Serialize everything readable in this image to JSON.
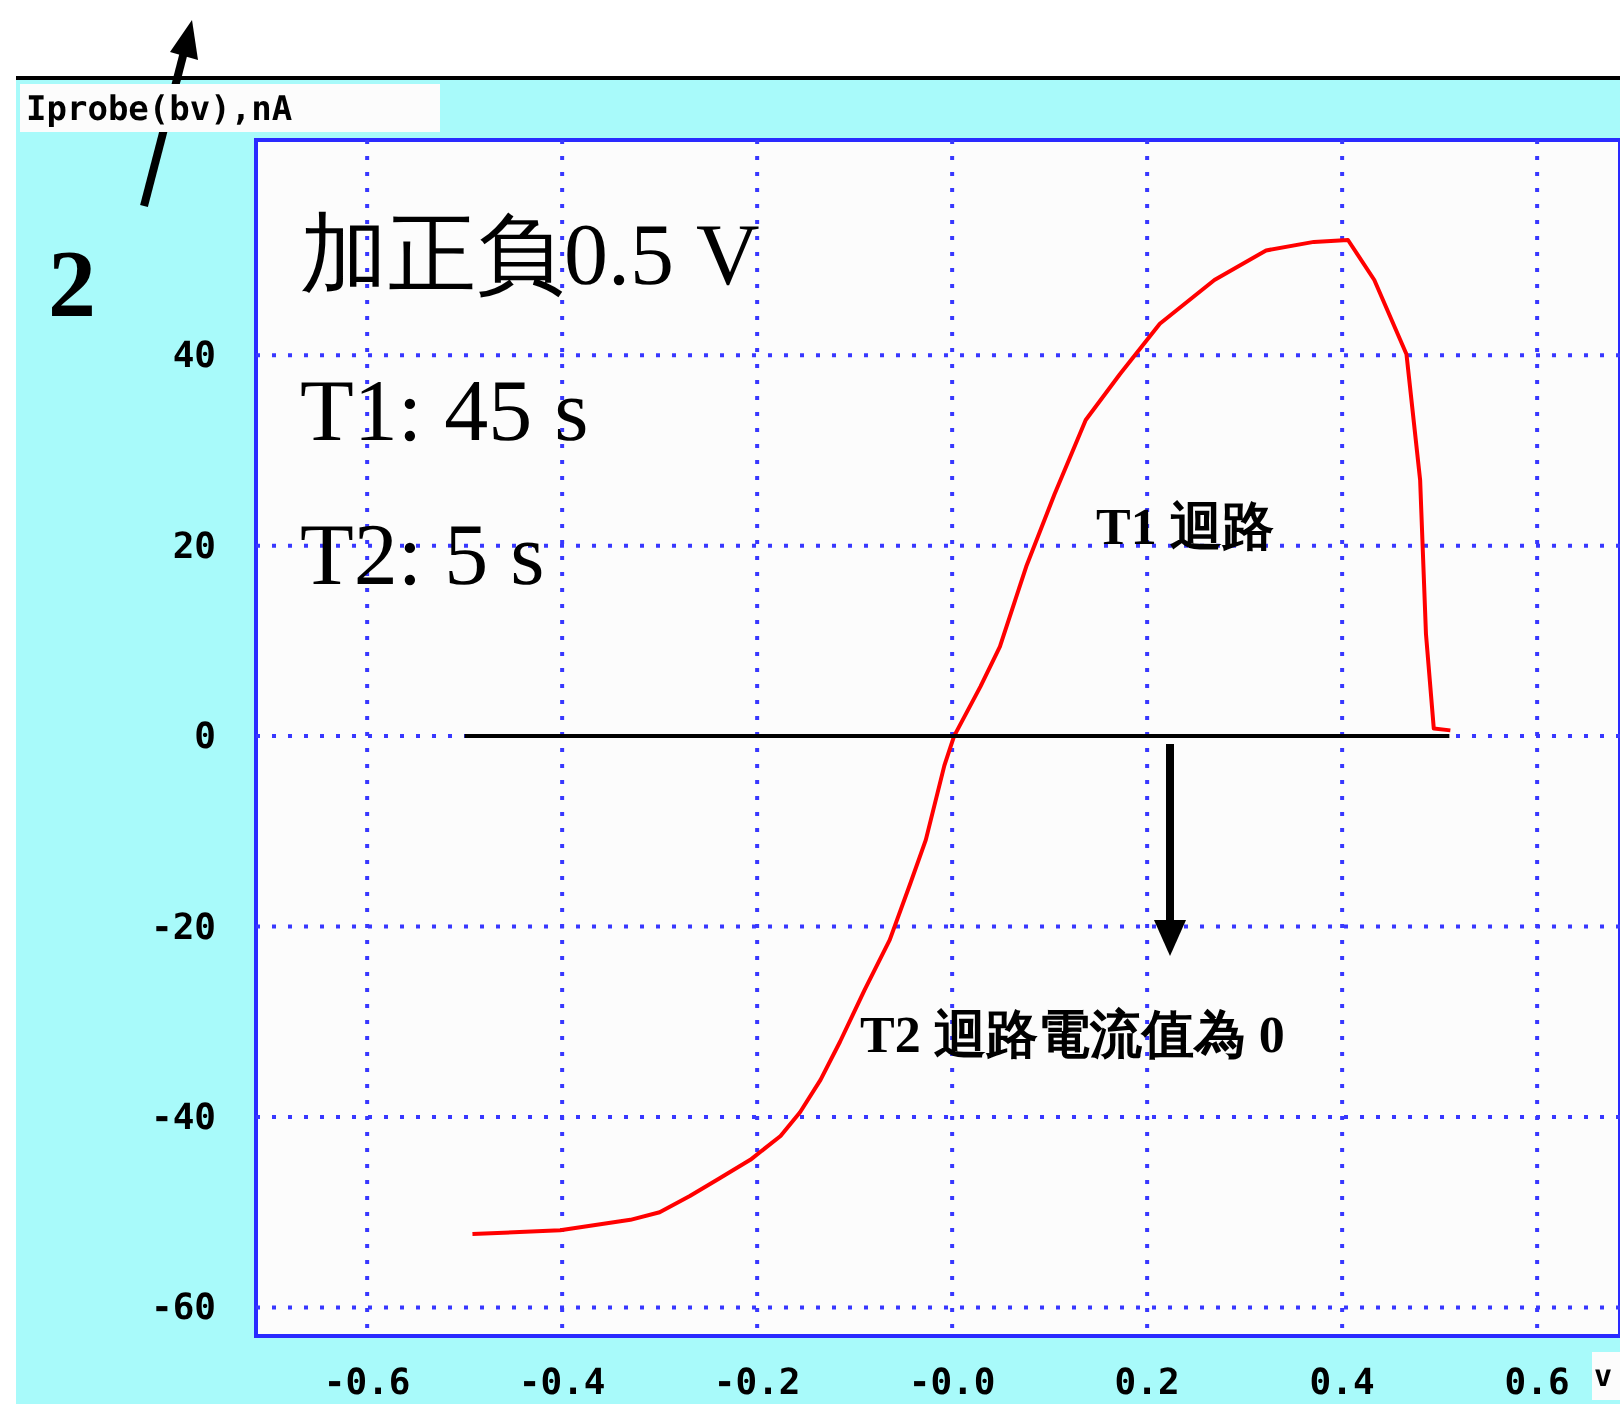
{
  "chart_data": {
    "type": "line",
    "ylabel": "Iprobe(bv),nA",
    "xlabel": "v",
    "xlim": [
      -0.714,
      0.685
    ],
    "ylim": [
      -63,
      62.6
    ],
    "xticks": [
      -0.6,
      -0.4,
      -0.2,
      {
        "value": 0,
        "label": "-0.0"
      },
      0.2,
      0.4,
      0.6
    ],
    "yticks": [
      -60,
      -40,
      -20,
      0,
      20,
      40
    ],
    "grid": true,
    "marker": "none",
    "line_style": "solid",
    "series": [
      {
        "color": "#ff0000",
        "x": [
          -0.492,
          -0.402,
          -0.33,
          -0.3,
          -0.269,
          -0.238,
          -0.207,
          -0.176,
          -0.156,
          -0.135,
          -0.115,
          -0.09,
          -0.064,
          -0.043,
          -0.027,
          -0.008,
          0.002,
          0.029,
          0.049,
          0.076,
          0.105,
          0.137,
          0.172,
          0.213,
          0.269,
          0.322,
          0.371,
          0.406,
          0.433,
          0.466,
          0.48,
          0.486,
          0.494,
          0.511
        ],
        "values": [
          -52.3,
          -51.9,
          -50.8,
          -50,
          -48.3,
          -46.4,
          -44.5,
          -42,
          -39.5,
          -36.1,
          -32.1,
          -26.7,
          -21.4,
          -15.5,
          -10.9,
          -3.1,
          0,
          5.2,
          9.4,
          17.8,
          25.4,
          33.2,
          38,
          43.3,
          47.9,
          51,
          51.9,
          52.1,
          47.9,
          40.1,
          26.9,
          10.7,
          0.8,
          0.6
        ]
      },
      {
        "color": "#000000",
        "x": [
          -0.5,
          0.51
        ],
        "values": [
          0,
          0
        ]
      }
    ],
    "annotations": [
      "加正負0.5 V",
      "T1: 45 s",
      "T2: 5 s",
      "T1 迴路",
      "T2 迴路電流值為 0",
      "2"
    ]
  }
}
